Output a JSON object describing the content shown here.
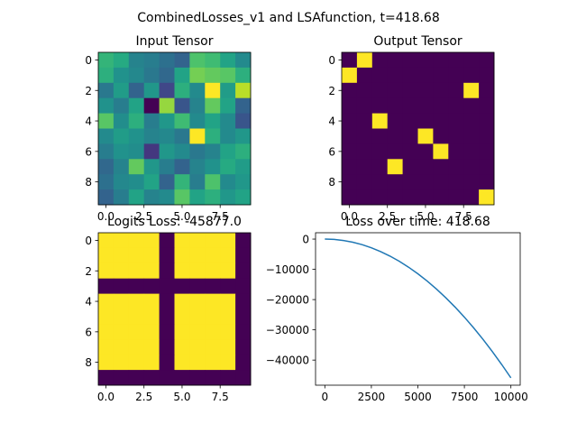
{
  "suptitle": "CombinedLosses_v1 and LSAfunction, t=418.68",
  "chart_data": [
    {
      "type": "heatmap",
      "title": "Input Tensor",
      "colormap": "viridis",
      "xticks": [
        "0.0",
        "2.5",
        "5.0",
        "7.5"
      ],
      "yticks": [
        "0",
        "2",
        "4",
        "6",
        "8"
      ],
      "values": [
        [
          0.62,
          0.58,
          0.42,
          0.4,
          0.35,
          0.3,
          0.68,
          0.65,
          0.55,
          0.45
        ],
        [
          0.6,
          0.48,
          0.44,
          0.38,
          0.32,
          0.55,
          0.75,
          0.72,
          0.7,
          0.6
        ],
        [
          0.38,
          0.52,
          0.3,
          0.5,
          0.2,
          0.6,
          0.45,
          0.95,
          0.52,
          0.85
        ],
        [
          0.48,
          0.4,
          0.55,
          0.0,
          0.8,
          0.25,
          0.42,
          0.72,
          0.55,
          0.3
        ],
        [
          0.7,
          0.46,
          0.6,
          0.4,
          0.5,
          0.65,
          0.45,
          0.55,
          0.45,
          0.25
        ],
        [
          0.45,
          0.52,
          0.48,
          0.42,
          0.44,
          0.38,
          0.95,
          0.6,
          0.45,
          0.5
        ],
        [
          0.4,
          0.48,
          0.46,
          0.15,
          0.5,
          0.45,
          0.38,
          0.42,
          0.55,
          0.6
        ],
        [
          0.32,
          0.42,
          0.72,
          0.5,
          0.4,
          0.3,
          0.42,
          0.48,
          0.58,
          0.52
        ],
        [
          0.35,
          0.44,
          0.46,
          0.55,
          0.3,
          0.62,
          0.4,
          0.68,
          0.45,
          0.5
        ],
        [
          0.3,
          0.4,
          0.55,
          0.42,
          0.45,
          0.7,
          0.55,
          0.6,
          0.5,
          0.55
        ]
      ]
    },
    {
      "type": "heatmap",
      "title": "Output Tensor",
      "colormap": "viridis",
      "xticks": [
        "0.0",
        "2.5",
        "5.0",
        "7.5"
      ],
      "yticks": [
        "0",
        "2",
        "4",
        "6",
        "8"
      ],
      "values": [
        [
          0,
          1,
          0,
          0,
          0,
          0,
          0,
          0,
          0,
          0
        ],
        [
          1,
          0,
          0,
          0,
          0,
          0,
          0,
          0,
          0,
          0
        ],
        [
          0,
          0,
          0,
          0,
          0,
          0,
          0,
          0,
          1,
          0
        ],
        [
          0,
          0,
          0,
          0,
          0,
          0,
          0,
          0,
          0,
          0
        ],
        [
          0,
          0,
          1,
          0,
          0,
          0,
          0,
          0,
          0,
          0
        ],
        [
          0,
          0,
          0,
          0,
          0,
          1,
          0,
          0,
          0,
          0
        ],
        [
          0,
          0,
          0,
          0,
          0,
          0,
          1,
          0,
          0,
          0
        ],
        [
          0,
          0,
          0,
          1,
          0,
          0,
          0,
          0,
          0,
          0
        ],
        [
          0,
          0,
          0,
          0,
          0,
          0,
          0,
          0,
          0,
          0
        ],
        [
          0,
          0,
          0,
          0,
          0,
          0,
          0,
          0,
          0,
          1
        ]
      ]
    },
    {
      "type": "heatmap",
      "title": "Logits Loss: -45877.0",
      "colormap": "viridis",
      "xticks": [
        "0.0",
        "2.5",
        "5.0",
        "7.5"
      ],
      "yticks": [
        "0",
        "2",
        "4",
        "6",
        "8"
      ],
      "values": [
        [
          1,
          1,
          1,
          1,
          0,
          1,
          1,
          1,
          1,
          0
        ],
        [
          1,
          1,
          1,
          1,
          0,
          1,
          1,
          1,
          1,
          0
        ],
        [
          1,
          1,
          1,
          1,
          0,
          1,
          1,
          1,
          1,
          0
        ],
        [
          0,
          0,
          0,
          0,
          0,
          0,
          0,
          0,
          0,
          0
        ],
        [
          1,
          1,
          1,
          1,
          0,
          1,
          1,
          1,
          1,
          0
        ],
        [
          1,
          1,
          1,
          1,
          0,
          1,
          1,
          1,
          1,
          0
        ],
        [
          1,
          1,
          1,
          1,
          0,
          1,
          1,
          1,
          1,
          0
        ],
        [
          1,
          1,
          1,
          1,
          0,
          1,
          1,
          1,
          1,
          0
        ],
        [
          1,
          1,
          1,
          1,
          0,
          1,
          1,
          1,
          1,
          0
        ],
        [
          0,
          0,
          0,
          0,
          0,
          0,
          0,
          0,
          0,
          0
        ]
      ]
    },
    {
      "type": "line",
      "title": "Loss over time: 418.68",
      "xlim": [
        -500,
        10500
      ],
      "ylim": [
        -48300,
        2100
      ],
      "xticks": [
        0,
        2500,
        5000,
        7500,
        10000
      ],
      "yticks": [
        0,
        -10000,
        -20000,
        -30000,
        -40000
      ],
      "line_color": "#1f77b4",
      "series": [
        {
          "x": [
            0,
            500,
            1000,
            1500,
            2000,
            2500,
            3000,
            3500,
            4000,
            4500,
            5000,
            5500,
            6000,
            6500,
            7000,
            7500,
            8000,
            8500,
            9000,
            9500,
            10000
          ],
          "values": [
            0,
            -115,
            -459,
            -1032,
            -1835,
            -2867,
            -4129,
            -5620,
            -7340,
            -9290,
            -11469,
            -13878,
            -16516,
            -19383,
            -22480,
            -25806,
            -29361,
            -33146,
            -37160,
            -41404,
            -45877
          ]
        }
      ]
    }
  ]
}
